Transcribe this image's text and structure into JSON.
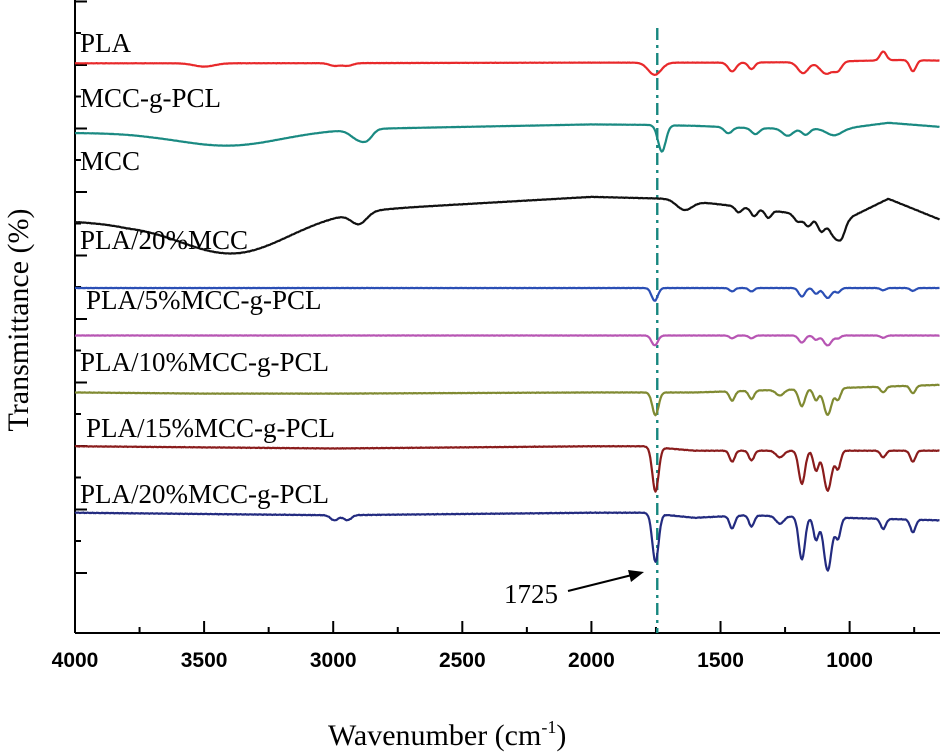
{
  "chart_data": {
    "type": "line",
    "title": "",
    "xlabel_main": "Wavenumber (cm",
    "xlabel_sup": "-1",
    "xlabel_close": ")",
    "ylabel": "Transmittance (%)",
    "xlim": [
      4000,
      650
    ],
    "x_reversed": true,
    "x_ticks": [
      4000,
      3500,
      3000,
      2500,
      2000,
      1500,
      1000
    ],
    "y_ticks_labeled": false,
    "annotation": {
      "text": "1725",
      "x": 1725
    },
    "reference_line_x": 1745,
    "series": [
      {
        "name": "PLA",
        "color": "#e8292b",
        "offset": 0.9,
        "amp": 0.035,
        "baseline": [
          [
            4000,
            0.0
          ],
          [
            3500,
            0.002
          ],
          [
            3000,
            0.006
          ],
          [
            2500,
            0.02
          ],
          [
            2000,
            0.03
          ],
          [
            1800,
            0.03
          ],
          [
            1500,
            0.03
          ],
          [
            1200,
            0.05
          ],
          [
            1000,
            0.1
          ],
          [
            800,
            0.15
          ],
          [
            650,
            0.12
          ]
        ],
        "bands": [
          [
            3500,
            40,
            -0.15
          ],
          [
            2995,
            20,
            -0.12
          ],
          [
            2945,
            20,
            -0.12
          ],
          [
            1755,
            25,
            -0.55
          ],
          [
            1455,
            15,
            -0.4
          ],
          [
            1380,
            12,
            -0.3
          ],
          [
            1180,
            20,
            -0.5
          ],
          [
            1090,
            25,
            -0.55
          ],
          [
            1045,
            15,
            -0.35
          ],
          [
            870,
            12,
            0.4
          ],
          [
            755,
            12,
            -0.5
          ]
        ]
      },
      {
        "name": "MCC-g-PCL",
        "color": "#1a8a82",
        "offset": 0.79,
        "amp": 0.032,
        "baseline": [
          [
            4000,
            0.0
          ],
          [
            3700,
            0.0
          ],
          [
            2000,
            0.42
          ],
          [
            1800,
            0.4
          ],
          [
            1600,
            0.35
          ],
          [
            1400,
            0.25
          ],
          [
            1200,
            0.2
          ],
          [
            1000,
            0.25
          ],
          [
            850,
            0.5
          ],
          [
            650,
            0.3
          ]
        ],
        "bands": [
          [
            3400,
            200,
            -0.7
          ],
          [
            2900,
            30,
            -0.5
          ],
          [
            2865,
            20,
            -0.3
          ],
          [
            1727,
            15,
            -1.3
          ],
          [
            1470,
            15,
            -0.3
          ],
          [
            1365,
            15,
            -0.3
          ],
          [
            1240,
            20,
            -0.35
          ],
          [
            1170,
            15,
            -0.3
          ],
          [
            1060,
            30,
            -0.35
          ]
        ]
      },
      {
        "name": "MCC",
        "color": "#111111",
        "offset": 0.65,
        "amp": 0.06,
        "baseline": [
          [
            4000,
            0.0
          ],
          [
            3800,
            -0.05
          ],
          [
            2000,
            0.65
          ],
          [
            1700,
            0.6
          ],
          [
            1500,
            0.45
          ],
          [
            1200,
            0.2
          ],
          [
            1000,
            0.1
          ],
          [
            850,
            0.6
          ],
          [
            650,
            0.05
          ]
        ],
        "bands": [
          [
            3380,
            210,
            -0.95
          ],
          [
            2900,
            30,
            -0.3
          ],
          [
            1640,
            30,
            -0.25
          ],
          [
            1430,
            12,
            -0.15
          ],
          [
            1370,
            12,
            -0.2
          ],
          [
            1315,
            12,
            -0.2
          ],
          [
            1200,
            15,
            -0.2
          ],
          [
            1160,
            15,
            -0.3
          ],
          [
            1110,
            15,
            -0.4
          ],
          [
            1060,
            20,
            -0.5
          ],
          [
            1030,
            15,
            -0.4
          ]
        ]
      },
      {
        "name": "PLA/20%MCC",
        "color": "#2b4fb5",
        "offset": 0.545,
        "amp": 0.045,
        "baseline": [
          [
            4000,
            0.0
          ],
          [
            3000,
            0.0
          ],
          [
            2000,
            0.0
          ],
          [
            650,
            0.0
          ]
        ],
        "bands": [
          [
            1755,
            12,
            -0.45
          ],
          [
            1455,
            10,
            -0.12
          ],
          [
            1380,
            10,
            -0.12
          ],
          [
            1185,
            12,
            -0.3
          ],
          [
            1130,
            10,
            -0.2
          ],
          [
            1085,
            15,
            -0.35
          ],
          [
            1045,
            10,
            -0.15
          ],
          [
            870,
            10,
            -0.08
          ],
          [
            755,
            10,
            -0.1
          ]
        ]
      },
      {
        "name": "PLA/5%MCC-g-PCL",
        "color": "#b755b3",
        "offset": 0.47,
        "amp": 0.045,
        "baseline": [
          [
            4000,
            0.0
          ],
          [
            2000,
            0.0
          ],
          [
            650,
            0.0
          ]
        ],
        "bands": [
          [
            1755,
            12,
            -0.35
          ],
          [
            1455,
            10,
            -0.1
          ],
          [
            1380,
            10,
            -0.1
          ],
          [
            1185,
            12,
            -0.25
          ],
          [
            1130,
            10,
            -0.15
          ],
          [
            1085,
            15,
            -0.35
          ],
          [
            1045,
            10,
            -0.1
          ],
          [
            870,
            10,
            -0.08
          ]
        ]
      },
      {
        "name": "PLA/10%MCC-g-PCL",
        "color": "#808a32",
        "offset": 0.38,
        "amp": 0.06,
        "baseline": [
          [
            4000,
            0.0
          ],
          [
            3500,
            -0.03
          ],
          [
            3000,
            -0.03
          ],
          [
            2000,
            0.0
          ],
          [
            1800,
            0.0
          ],
          [
            1600,
            0.0
          ],
          [
            650,
            0.2
          ]
        ],
        "bands": [
          [
            1752,
            12,
            -0.6
          ],
          [
            1455,
            10,
            -0.25
          ],
          [
            1380,
            10,
            -0.22
          ],
          [
            1270,
            15,
            -0.15
          ],
          [
            1185,
            12,
            -0.45
          ],
          [
            1130,
            10,
            -0.3
          ],
          [
            1085,
            15,
            -0.7
          ],
          [
            1045,
            10,
            -0.3
          ],
          [
            870,
            10,
            -0.15
          ],
          [
            755,
            10,
            -0.2
          ]
        ]
      },
      {
        "name": "PLA/15%MCC-g-PCL",
        "color": "#8a1c1c",
        "offset": 0.295,
        "amp": 0.07,
        "baseline": [
          [
            4000,
            0.0
          ],
          [
            3000,
            -0.05
          ],
          [
            2000,
            0.0
          ],
          [
            1800,
            0.0
          ],
          [
            1600,
            -0.1
          ],
          [
            650,
            -0.1
          ]
        ],
        "bands": [
          [
            1752,
            12,
            -1.0
          ],
          [
            1455,
            10,
            -0.25
          ],
          [
            1380,
            10,
            -0.22
          ],
          [
            1270,
            15,
            -0.15
          ],
          [
            1185,
            12,
            -0.75
          ],
          [
            1130,
            10,
            -0.45
          ],
          [
            1085,
            15,
            -0.9
          ],
          [
            1045,
            10,
            -0.4
          ],
          [
            870,
            10,
            -0.15
          ],
          [
            755,
            10,
            -0.25
          ]
        ]
      },
      {
        "name": "PLA/20%MCC-g-PCL",
        "color": "#232b80",
        "offset": 0.19,
        "amp": 0.08,
        "baseline": [
          [
            4000,
            0.0
          ],
          [
            3000,
            -0.05
          ],
          [
            2000,
            0.0
          ],
          [
            1800,
            0.0
          ],
          [
            1600,
            -0.1
          ],
          [
            1400,
            -0.05
          ],
          [
            650,
            -0.15
          ]
        ],
        "bands": [
          [
            2995,
            15,
            -0.1
          ],
          [
            2945,
            15,
            -0.1
          ],
          [
            1752,
            12,
            -0.95
          ],
          [
            1455,
            10,
            -0.25
          ],
          [
            1380,
            10,
            -0.22
          ],
          [
            1270,
            15,
            -0.15
          ],
          [
            1185,
            12,
            -0.85
          ],
          [
            1130,
            10,
            -0.45
          ],
          [
            1085,
            15,
            -1.05
          ],
          [
            1045,
            10,
            -0.4
          ],
          [
            870,
            10,
            -0.2
          ],
          [
            755,
            10,
            -0.25
          ]
        ]
      }
    ]
  }
}
